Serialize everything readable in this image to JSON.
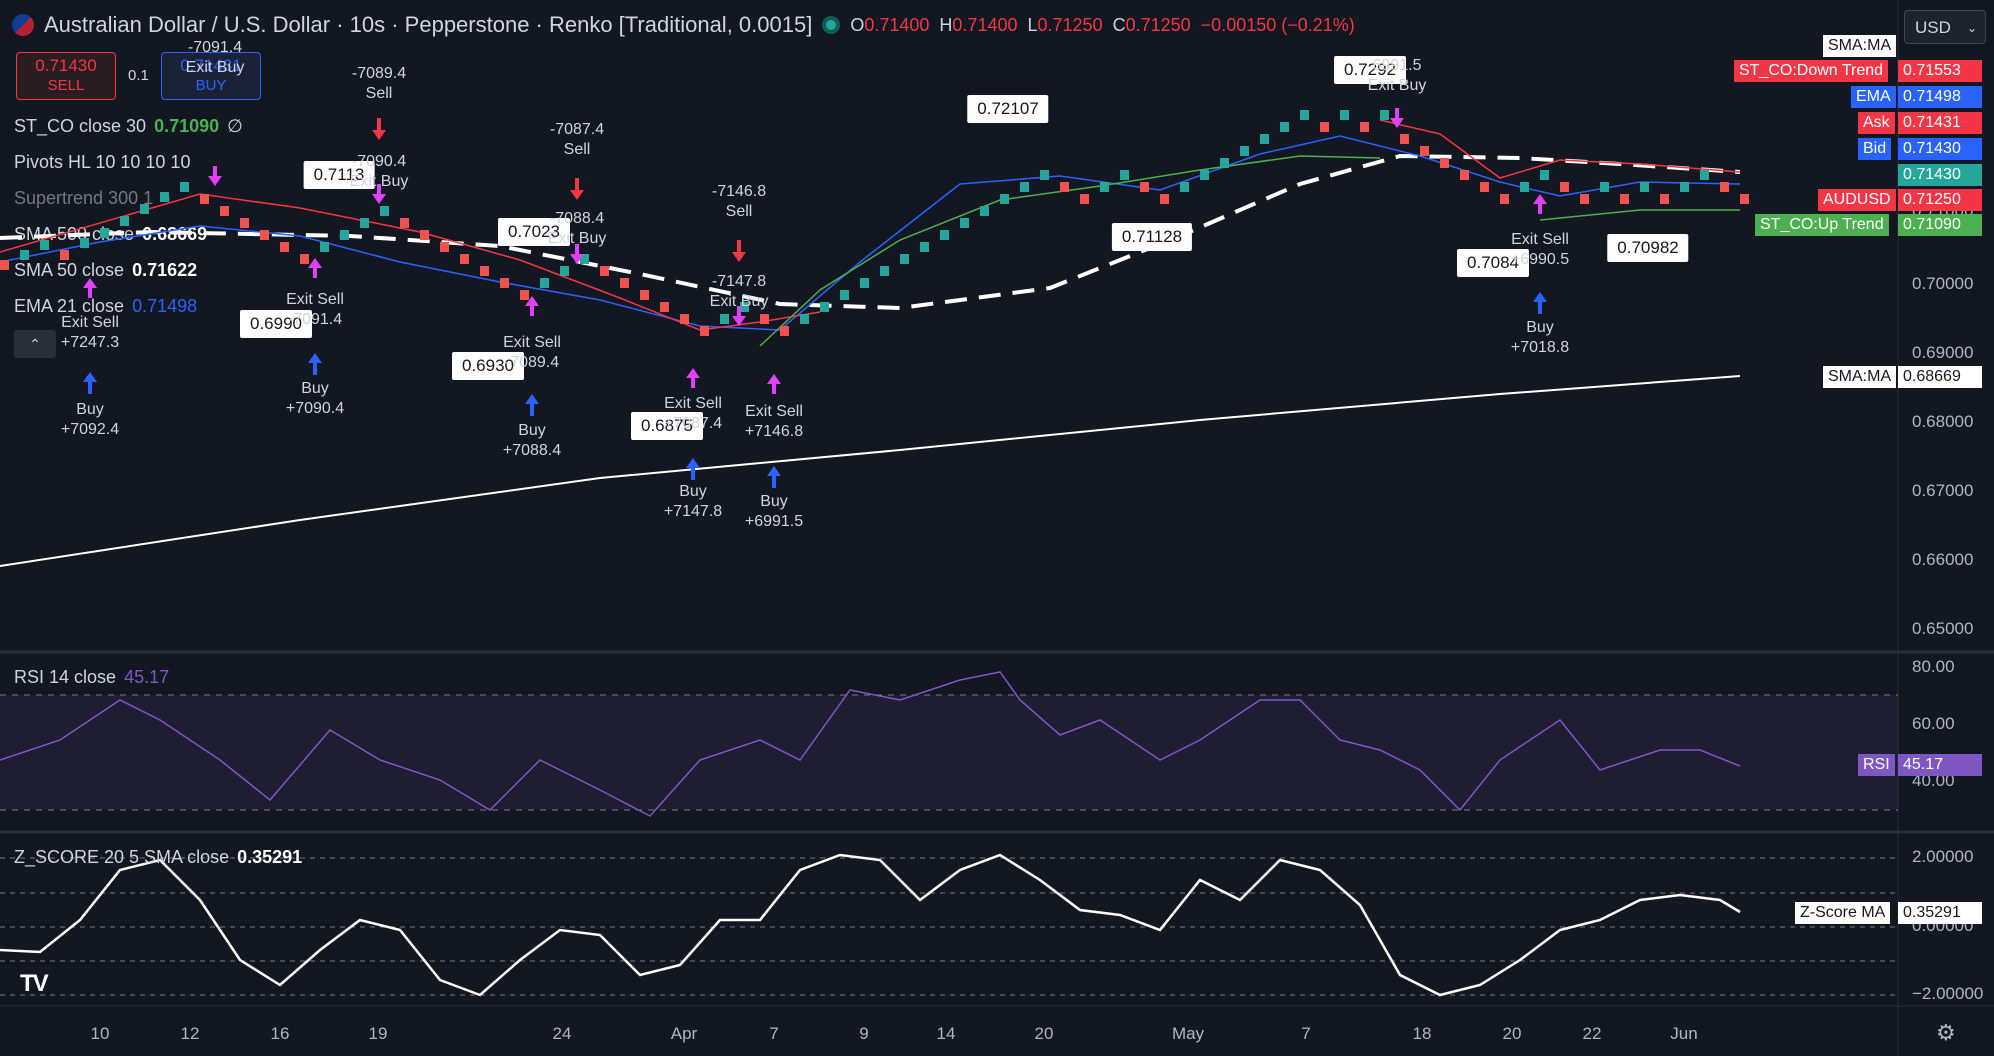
{
  "header": {
    "symbol_title": "Australian Dollar / U.S. Dollar · 10s · Pepperstone · Renko [Traditional, 0.0015]",
    "open_label": "O",
    "open": "0.71400",
    "high_label": "H",
    "high": "0.71400",
    "low_label": "L",
    "low": "0.71250",
    "close_label": "C",
    "close": "0.71250",
    "change": "−0.00150 (−0.21%)",
    "currency": "USD"
  },
  "trade": {
    "sell_price": "0.71430",
    "sell_label": "SELL",
    "qty": "0.1",
    "buy_price": "0.71431",
    "buy_label": "BUY"
  },
  "legend": [
    {
      "name": "ST_CO close 30",
      "value": "0.71090",
      "extra": "∅"
    },
    {
      "name": "Pivots HL 10 10 10 10",
      "value": ""
    },
    {
      "name": "Supertrend 300 1",
      "value": ""
    },
    {
      "name": "SMA 500 close",
      "value": "0.68669"
    },
    {
      "name": "SMA 50 close",
      "value": "0.71622"
    },
    {
      "name": "EMA 21 close",
      "value": "0.71498"
    }
  ],
  "price_axis": {
    "ticks": [
      "0.71000",
      "0.70000",
      "0.69000",
      "0.68000",
      "0.67000",
      "0.66000",
      "0.65000"
    ],
    "tags": [
      {
        "label": "SMA:MA",
        "value": ""
      },
      {
        "label": "ST_CO:Down Trend",
        "value": "0.71553"
      },
      {
        "label": "EMA",
        "value": "0.71498"
      },
      {
        "label": "Ask",
        "value": "0.71431"
      },
      {
        "label": "Bid",
        "value": "0.71430"
      },
      {
        "label": "",
        "value": "0.71430"
      },
      {
        "label": "AUDUSD",
        "value": "0.71250"
      },
      {
        "label": "ST_CO:Up Trend",
        "value": "0.71090"
      },
      {
        "label": "SMA:MA",
        "value": "0.68669"
      }
    ]
  },
  "rsi": {
    "title": "RSI 14 close",
    "value": "45.17",
    "ticks": [
      "80.00",
      "60.00",
      "40.00"
    ],
    "tag_label": "RSI",
    "tag_value": "45.17"
  },
  "zscore": {
    "title": "Z_SCORE 20 5 SMA close",
    "value": "0.35291",
    "ticks": [
      "2.00000",
      "0.00000",
      "−2.00000"
    ],
    "tag_label": "Z-Score MA",
    "tag_value": "0.35291"
  },
  "time_axis": [
    "10",
    "12",
    "16",
    "19",
    "24",
    "Apr",
    "7",
    "9",
    "14",
    "20",
    "May",
    "7",
    "18",
    "20",
    "22",
    "Jun"
  ],
  "callouts": [
    "0.72107",
    "0.71128",
    "0.70982",
    "0.7113",
    "0.7023",
    "0.6990",
    "0.6930",
    "0.6875",
    "0.7084",
    "0.7292"
  ],
  "signals": [
    {
      "text": "Buy\n+7092.4"
    },
    {
      "text": "Buy\n+7090.4"
    },
    {
      "text": "Buy\n+7088.4"
    },
    {
      "text": "Buy\n+7147.8"
    },
    {
      "text": "Buy\n+6991.5"
    },
    {
      "text": "Buy\n+7018.8"
    },
    {
      "text": "-7089.4\nSell"
    },
    {
      "text": "-7087.4\nSell"
    },
    {
      "text": "-7146.8\nSell"
    },
    {
      "text": "Exit Sell\n+7247.3"
    },
    {
      "text": "Exit Sell\n-7091.4"
    },
    {
      "text": "Exit Sell\n-7089.4"
    },
    {
      "text": "Exit Sell\n+7087.4"
    },
    {
      "text": "Exit Sell\n+7146.8"
    },
    {
      "text": "Exit Sell\n+6990.5"
    },
    {
      "text": "-7090.4\nExit Buy"
    },
    {
      "text": "-7088.4\nExit Buy"
    },
    {
      "text": "-7147.8\nExit Buy"
    },
    {
      "text": "-7091.4\nExit Buy"
    },
    {
      "text": "6991.5\nExit Buy"
    }
  ],
  "colors": {
    "bg": "#131722",
    "up": "#26a69a",
    "down": "#ef5350",
    "ema": "#2962ff",
    "sma500": "#ffffff",
    "rsi": "#7e57c2",
    "signal_buy": "#2962ff",
    "signal_sell": "#f23645",
    "signal_exit": "#e040fb"
  }
}
